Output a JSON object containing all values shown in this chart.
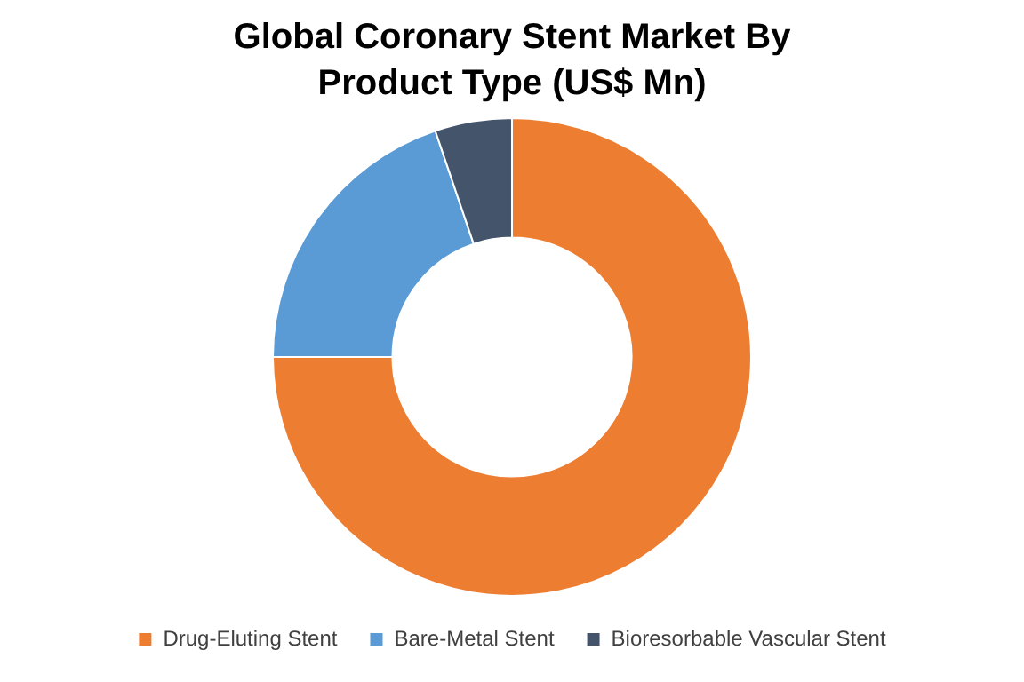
{
  "chart_data": {
    "type": "donut",
    "title": "Global Coronary Stent Market By Product Type (US$ Mn)",
    "categories": [
      "Drug-Eluting Stent",
      "Bare-Metal Stent",
      "Bioresorbable Vascular Stent"
    ],
    "values": [
      75,
      19.8,
      5.2
    ],
    "colors": [
      "#ed7d31",
      "#5b9bd5",
      "#44546a"
    ],
    "legend": "bottom"
  }
}
